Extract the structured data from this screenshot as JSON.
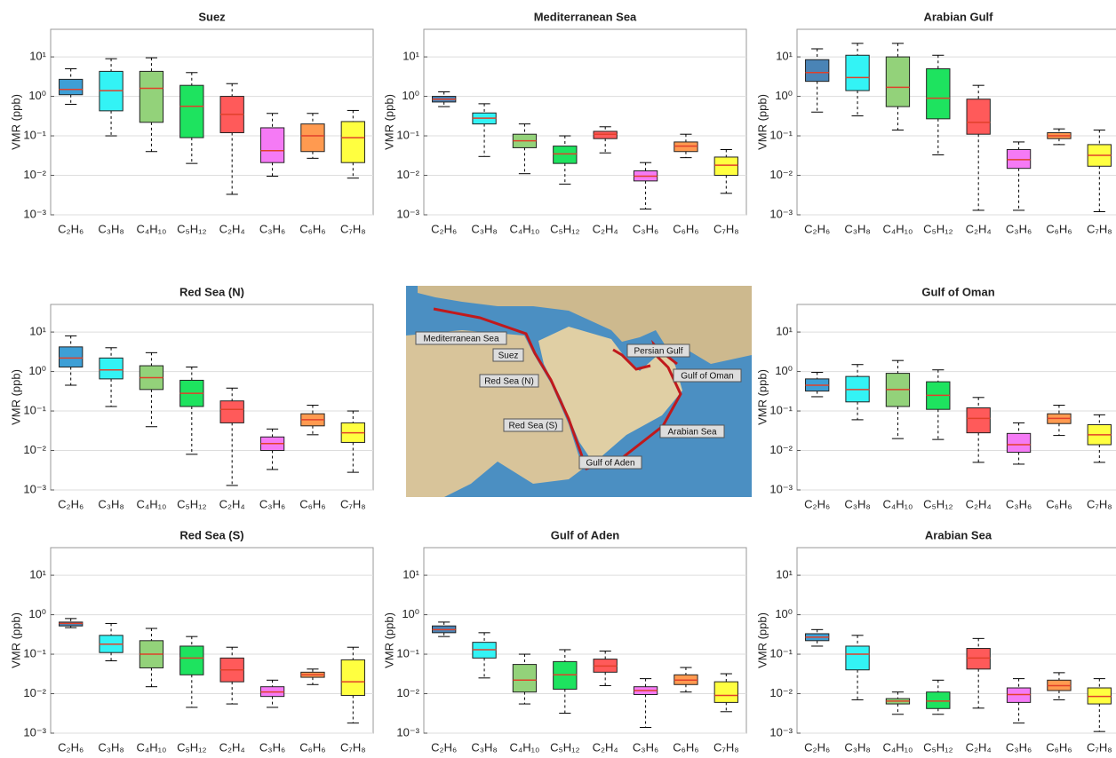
{
  "chart_data": [
    {
      "type": "box",
      "title": "Suez",
      "ylabel": "VMR (ppb)",
      "log": true,
      "grid": true,
      "categories": [
        "C₂H₆",
        "C₃H₈",
        "C₄H₁₀",
        "C₅H₁₂",
        "C₂H₄",
        "C₃H₆",
        "C₆H₆",
        "C₇H₈"
      ],
      "colors": [
        "#3d9fd6",
        "#33f3f5",
        "#93d27a",
        "#1ee35f",
        "#ff5a5a",
        "#f57af5",
        "#ff9a50",
        "#ffff40"
      ],
      "median_color": "#e0402a",
      "min": [
        0.63,
        0.1,
        0.04,
        0.02,
        0.0033,
        0.0095,
        0.027,
        0.0085
      ],
      "q1": [
        1.1,
        0.43,
        0.22,
        0.09,
        0.12,
        0.021,
        0.04,
        0.021
      ],
      "median": [
        1.5,
        1.4,
        1.6,
        0.56,
        0.35,
        0.042,
        0.1,
        0.09
      ],
      "q3": [
        2.7,
        4.3,
        4.3,
        1.9,
        1.0,
        0.16,
        0.2,
        0.23
      ],
      "max": [
        5,
        9,
        9.5,
        4,
        2.1,
        0.37,
        0.37,
        0.44
      ],
      "ylim": [
        0.001,
        50
      ],
      "yticks": [
        {
          "value": 0.001,
          "label": "10⁻³"
        },
        {
          "value": 0.01,
          "label": "10⁻²"
        },
        {
          "value": 0.1,
          "label": "10⁻¹"
        },
        {
          "value": 1,
          "label": "10⁰"
        },
        {
          "value": 10,
          "label": "10¹"
        }
      ]
    },
    {
      "type": "box",
      "title": "Mediterranean Sea",
      "ylabel": "VMR (ppb)",
      "log": true,
      "grid": true,
      "categories": [
        "C₂H₆",
        "C₃H₈",
        "C₄H₁₀",
        "C₅H₁₂",
        "C₂H₄",
        "C₃H₆",
        "C₆H₆",
        "C₇H₈"
      ],
      "colors": [
        "#4a84b6",
        "#33f3f5",
        "#93d27a",
        "#1ee35f",
        "#ff5a5a",
        "#f57af5",
        "#ff9a50",
        "#ffff40"
      ],
      "median_color": "#e0402a",
      "min": [
        0.55,
        0.03,
        0.011,
        0.006,
        0.037,
        0.0014,
        0.028,
        0.0035
      ],
      "q1": [
        0.72,
        0.2,
        0.05,
        0.02,
        0.085,
        0.0072,
        0.04,
        0.01
      ],
      "median": [
        0.85,
        0.28,
        0.075,
        0.035,
        0.11,
        0.0095,
        0.055,
        0.018
      ],
      "q3": [
        1.0,
        0.38,
        0.11,
        0.055,
        0.13,
        0.013,
        0.07,
        0.029
      ],
      "max": [
        1.3,
        0.65,
        0.2,
        0.1,
        0.17,
        0.021,
        0.11,
        0.045
      ],
      "ylim": [
        0.001,
        50
      ],
      "yticks": [
        {
          "value": 0.001,
          "label": "10⁻³"
        },
        {
          "value": 0.01,
          "label": "10⁻²"
        },
        {
          "value": 0.1,
          "label": "10⁻¹"
        },
        {
          "value": 1,
          "label": "10⁰"
        },
        {
          "value": 10,
          "label": "10¹"
        }
      ]
    },
    {
      "type": "box",
      "title": "Arabian Gulf",
      "ylabel": "VMR (ppb)",
      "log": true,
      "grid": true,
      "categories": [
        "C₂H₆",
        "C₃H₈",
        "C₄H₁₀",
        "C₅H₁₂",
        "C₂H₄",
        "C₃H₆",
        "C₆H₆",
        "C₇H₈"
      ],
      "colors": [
        "#4a84b6",
        "#33f3f5",
        "#93d27a",
        "#1ee35f",
        "#ff5a5a",
        "#f57af5",
        "#ff9a50",
        "#ffff40"
      ],
      "median_color": "#e0402a",
      "min": [
        0.4,
        0.32,
        0.14,
        0.033,
        0.0013,
        0.0013,
        0.06,
        0.0012
      ],
      "q1": [
        2.4,
        1.4,
        0.55,
        0.27,
        0.11,
        0.015,
        0.085,
        0.017
      ],
      "median": [
        4,
        3,
        1.7,
        0.9,
        0.22,
        0.025,
        0.1,
        0.032
      ],
      "q3": [
        8.5,
        11,
        10,
        5,
        0.85,
        0.045,
        0.12,
        0.06
      ],
      "max": [
        16,
        22,
        22,
        11,
        1.9,
        0.07,
        0.15,
        0.14
      ],
      "ylim": [
        0.001,
        50
      ],
      "yticks": [
        {
          "value": 0.001,
          "label": "10⁻³"
        },
        {
          "value": 0.01,
          "label": "10⁻²"
        },
        {
          "value": 0.1,
          "label": "10⁻¹"
        },
        {
          "value": 1,
          "label": "10⁰"
        },
        {
          "value": 10,
          "label": "10¹"
        }
      ]
    },
    {
      "type": "box",
      "title": "Red Sea (N)",
      "ylabel": "VMR (ppb)",
      "log": true,
      "grid": true,
      "categories": [
        "C₂H₆",
        "C₃H₈",
        "C₄H₁₀",
        "C₅H₁₂",
        "C₂H₄",
        "C₃H₆",
        "C₆H₆",
        "C₇H₈"
      ],
      "colors": [
        "#3d9fd6",
        "#33f3f5",
        "#93d27a",
        "#1ee35f",
        "#ff5a5a",
        "#f57af5",
        "#ff9a50",
        "#ffff40"
      ],
      "median_color": "#e0402a",
      "min": [
        0.45,
        0.13,
        0.04,
        0.008,
        0.0013,
        0.0033,
        0.025,
        0.0028
      ],
      "q1": [
        1.3,
        0.65,
        0.35,
        0.13,
        0.05,
        0.01,
        0.042,
        0.016
      ],
      "median": [
        2.2,
        1.1,
        0.7,
        0.28,
        0.11,
        0.015,
        0.06,
        0.028
      ],
      "q3": [
        4.2,
        2.2,
        1.4,
        0.6,
        0.18,
        0.022,
        0.085,
        0.05
      ],
      "max": [
        8,
        4,
        3,
        1.3,
        0.38,
        0.035,
        0.14,
        0.1
      ],
      "ylim": [
        0.001,
        50
      ],
      "yticks": [
        {
          "value": 0.001,
          "label": "10⁻³"
        },
        {
          "value": 0.01,
          "label": "10⁻²"
        },
        {
          "value": 0.1,
          "label": "10⁻¹"
        },
        {
          "value": 1,
          "label": "10⁰"
        },
        {
          "value": 10,
          "label": "10¹"
        }
      ]
    },
    {
      "type": "box",
      "title": "Gulf of Oman",
      "ylabel": "VMR (ppb)",
      "log": true,
      "grid": true,
      "categories": [
        "C₂H₆",
        "C₃H₈",
        "C₄H₁₀",
        "C₅H₁₂",
        "C₂H₄",
        "C₃H₆",
        "C₆H₆",
        "C₇H₈"
      ],
      "colors": [
        "#3d9fd6",
        "#33f3f5",
        "#93d27a",
        "#1ee35f",
        "#ff5a5a",
        "#f57af5",
        "#ff9a50",
        "#ffff40"
      ],
      "median_color": "#e0402a",
      "min": [
        0.23,
        0.06,
        0.02,
        0.019,
        0.005,
        0.0045,
        0.024,
        0.005
      ],
      "q1": [
        0.32,
        0.17,
        0.13,
        0.11,
        0.028,
        0.009,
        0.048,
        0.014
      ],
      "median": [
        0.45,
        0.35,
        0.35,
        0.25,
        0.065,
        0.014,
        0.065,
        0.025
      ],
      "q3": [
        0.65,
        0.75,
        0.9,
        0.55,
        0.12,
        0.027,
        0.085,
        0.045
      ],
      "max": [
        0.95,
        1.5,
        1.9,
        1.1,
        0.22,
        0.05,
        0.14,
        0.08
      ],
      "ylim": [
        0.001,
        50
      ],
      "yticks": [
        {
          "value": 0.001,
          "label": "10⁻³"
        },
        {
          "value": 0.01,
          "label": "10⁻²"
        },
        {
          "value": 0.1,
          "label": "10⁻¹"
        },
        {
          "value": 1,
          "label": "10⁰"
        },
        {
          "value": 10,
          "label": "10¹"
        }
      ]
    },
    {
      "type": "box",
      "title": "Red Sea (S)",
      "ylabel": "VMR (ppb)",
      "log": true,
      "grid": true,
      "categories": [
        "C₂H₆",
        "C₃H₈",
        "C₄H₁₀",
        "C₅H₁₂",
        "C₂H₄",
        "C₃H₆",
        "C₆H₆",
        "C₇H₈"
      ],
      "colors": [
        "#4a84b6",
        "#33f3f5",
        "#93d27a",
        "#1ee35f",
        "#ff5a5a",
        "#f57af5",
        "#ff9a50",
        "#ffff40"
      ],
      "median_color": "#e0402a",
      "min": [
        0.47,
        0.068,
        0.015,
        0.0045,
        0.0055,
        0.0045,
        0.017,
        0.0018
      ],
      "q1": [
        0.52,
        0.11,
        0.045,
        0.03,
        0.02,
        0.0085,
        0.026,
        0.009
      ],
      "median": [
        0.6,
        0.18,
        0.1,
        0.08,
        0.04,
        0.011,
        0.03,
        0.02
      ],
      "q3": [
        0.65,
        0.3,
        0.22,
        0.16,
        0.08,
        0.015,
        0.035,
        0.072
      ],
      "max": [
        0.8,
        0.6,
        0.45,
        0.28,
        0.15,
        0.022,
        0.042,
        0.15
      ],
      "ylim": [
        0.001,
        50
      ],
      "yticks": [
        {
          "value": 0.001,
          "label": "10⁻³"
        },
        {
          "value": 0.01,
          "label": "10⁻²"
        },
        {
          "value": 0.1,
          "label": "10⁻¹"
        },
        {
          "value": 1,
          "label": "10⁰"
        },
        {
          "value": 10,
          "label": "10¹"
        }
      ]
    },
    {
      "type": "box",
      "title": "Gulf of Aden",
      "ylabel": "VMR (ppb)",
      "log": true,
      "grid": true,
      "categories": [
        "C₂H₆",
        "C₃H₈",
        "C₄H₁₀",
        "C₅H₁₂",
        "C₂H₄",
        "C₃H₆",
        "C₆H₆",
        "C₇H₈"
      ],
      "colors": [
        "#4a84b6",
        "#33f3f5",
        "#93d27a",
        "#1ee35f",
        "#ff5a5a",
        "#f57af5",
        "#ff9a50",
        "#ffff40"
      ],
      "median_color": "#e0402a",
      "min": [
        0.28,
        0.025,
        0.0055,
        0.0032,
        0.016,
        0.0014,
        0.011,
        0.0035
      ],
      "q1": [
        0.35,
        0.08,
        0.011,
        0.013,
        0.035,
        0.0095,
        0.017,
        0.006
      ],
      "median": [
        0.42,
        0.13,
        0.022,
        0.03,
        0.05,
        0.012,
        0.022,
        0.009
      ],
      "q3": [
        0.52,
        0.2,
        0.055,
        0.065,
        0.075,
        0.015,
        0.03,
        0.02
      ],
      "max": [
        0.65,
        0.35,
        0.1,
        0.13,
        0.12,
        0.024,
        0.046,
        0.032
      ],
      "ylim": [
        0.001,
        50
      ],
      "yticks": [
        {
          "value": 0.001,
          "label": "10⁻³"
        },
        {
          "value": 0.01,
          "label": "10⁻²"
        },
        {
          "value": 0.1,
          "label": "10⁻¹"
        },
        {
          "value": 1,
          "label": "10⁰"
        },
        {
          "value": 10,
          "label": "10¹"
        }
      ]
    },
    {
      "type": "box",
      "title": "Arabian Sea",
      "ylabel": "VMR (ppb)",
      "log": true,
      "grid": true,
      "categories": [
        "C₂H₆",
        "C₃H₈",
        "C₄H₁₀",
        "C₅H₁₂",
        "C₂H₄",
        "C₃H₆",
        "C₆H₆",
        "C₇H₈"
      ],
      "colors": [
        "#3d9fd6",
        "#33f3f5",
        "#93d27a",
        "#1ee35f",
        "#ff5a5a",
        "#f57af5",
        "#ff9a50",
        "#ffff40"
      ],
      "median_color": "#e0402a",
      "min": [
        0.16,
        0.007,
        0.003,
        0.003,
        0.0043,
        0.0018,
        0.007,
        0.0011
      ],
      "q1": [
        0.22,
        0.04,
        0.0055,
        0.0042,
        0.042,
        0.006,
        0.012,
        0.0055
      ],
      "median": [
        0.27,
        0.1,
        0.0065,
        0.0065,
        0.08,
        0.0095,
        0.016,
        0.0085
      ],
      "q3": [
        0.33,
        0.16,
        0.0075,
        0.011,
        0.14,
        0.014,
        0.022,
        0.014
      ],
      "max": [
        0.42,
        0.3,
        0.011,
        0.022,
        0.25,
        0.024,
        0.034,
        0.024
      ],
      "ylim": [
        0.001,
        50
      ],
      "yticks": [
        {
          "value": 0.001,
          "label": "10⁻³"
        },
        {
          "value": 0.01,
          "label": "10⁻²"
        },
        {
          "value": 0.1,
          "label": "10⁻¹"
        },
        {
          "value": 1,
          "label": "10⁰"
        },
        {
          "value": 10,
          "label": "10¹"
        }
      ]
    }
  ],
  "map": {
    "labels": [
      "Mediterranean Sea",
      "Suez",
      "Red Sea (N)",
      "Red Sea (S)",
      "Gulf of Aden",
      "Arabian Sea",
      "Gulf of Oman",
      "Persian Gulf"
    ]
  }
}
